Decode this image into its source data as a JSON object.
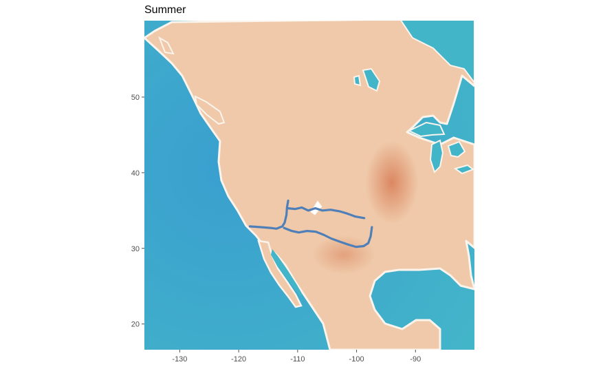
{
  "title": "Summer",
  "map": {
    "basemap": "watercolor",
    "colors": {
      "ocean": "#43b5c9",
      "ocean_deep": "#3a9fcf",
      "land": "#efc9a9",
      "land_hot": "#d9805a",
      "coast": "#fbf4ec",
      "track": "#4f7fb8"
    },
    "x_range": [
      -136,
      -80
    ],
    "y_range": [
      16.6,
      60.1
    ],
    "x_ticks": [
      -130,
      -120,
      -110,
      -100,
      -90
    ],
    "y_ticks": [
      20,
      30,
      40,
      50
    ],
    "x_tick_labels": [
      "-130",
      "-120",
      "-110",
      "-100",
      "-90"
    ],
    "y_tick_labels": [
      "20",
      "30",
      "40",
      "50"
    ],
    "tracks": [
      {
        "points": [
          [
            -118.1,
            32.9
          ],
          [
            -116.2,
            32.8
          ],
          [
            -114.6,
            32.7
          ],
          [
            -113.6,
            32.6
          ],
          [
            -112.6,
            32.9
          ],
          [
            -112.2,
            33.4
          ],
          [
            -111.9,
            34.4
          ],
          [
            -111.8,
            35.4
          ],
          [
            -111.6,
            36.3
          ]
        ]
      },
      {
        "points": [
          [
            -111.7,
            35.3
          ],
          [
            -110.4,
            35.2
          ],
          [
            -109.3,
            35.4
          ],
          [
            -108.2,
            35.0
          ],
          [
            -107.0,
            35.3
          ],
          [
            -105.8,
            35.0
          ],
          [
            -104.4,
            35.1
          ],
          [
            -102.9,
            34.9
          ],
          [
            -101.6,
            34.6
          ],
          [
            -100.2,
            34.2
          ],
          [
            -98.7,
            34.0
          ]
        ]
      },
      {
        "points": [
          [
            -112.3,
            32.7
          ],
          [
            -111.0,
            32.3
          ],
          [
            -109.8,
            32.1
          ],
          [
            -108.4,
            32.3
          ],
          [
            -106.9,
            32.2
          ],
          [
            -105.6,
            31.8
          ],
          [
            -104.3,
            31.3
          ],
          [
            -102.9,
            30.9
          ],
          [
            -101.4,
            30.5
          ],
          [
            -100.1,
            30.2
          ],
          [
            -98.8,
            30.3
          ],
          [
            -98.0,
            30.7
          ],
          [
            -97.6,
            31.6
          ],
          [
            -97.4,
            32.8
          ]
        ]
      }
    ]
  }
}
